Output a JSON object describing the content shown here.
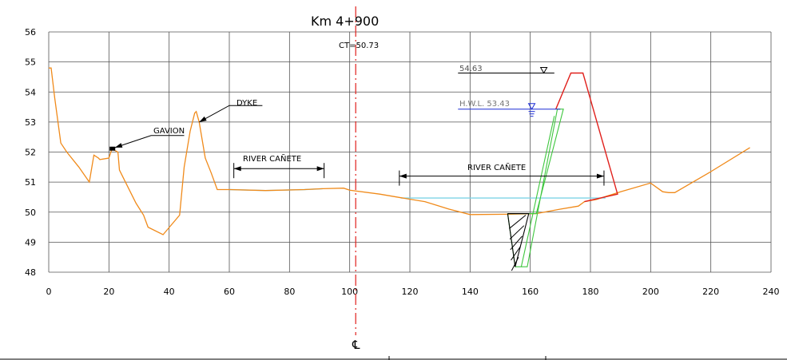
{
  "title": "Km  4+900",
  "ct_label": "CT=50.73",
  "centerline_symbol": "℄",
  "labels": {
    "gavion": "GAVION",
    "dyke": "DYKE",
    "river_left": "RIVER   CAÑETE",
    "river_right": "RIVER   CAÑETE",
    "level_top": "54.63",
    "hwl": "H.W.L.  53.43"
  },
  "colors": {
    "ground": "#f08a1a",
    "water": "#7fd3e6",
    "dyke": "#e0201c",
    "excavation": "#3ec63e",
    "hwl": "#1a2bd6",
    "centerline": "#e0201c",
    "grid": "#555555"
  },
  "chart_data": {
    "type": "line",
    "title": "Km  4+900",
    "xlim": [
      0,
      240
    ],
    "ylim": [
      48,
      56
    ],
    "x_ticks": [
      0,
      20,
      40,
      60,
      80,
      100,
      120,
      140,
      160,
      180,
      200,
      220,
      240
    ],
    "y_ticks": [
      48,
      49,
      50,
      51,
      52,
      53,
      54,
      55,
      56
    ],
    "grid": true,
    "centerline_x": 102,
    "ground_profile": [
      [
        0,
        54.8
      ],
      [
        0.8,
        54.8
      ],
      [
        2,
        53.8
      ],
      [
        4,
        52.3
      ],
      [
        6,
        52.0
      ],
      [
        10,
        51.5
      ],
      [
        13.5,
        51.0
      ],
      [
        15,
        51.9
      ],
      [
        16.5,
        51.8
      ],
      [
        17,
        51.75
      ],
      [
        20,
        51.8
      ],
      [
        21,
        52.1
      ],
      [
        22,
        52.05
      ],
      [
        23,
        52.0
      ],
      [
        23.5,
        51.4
      ],
      [
        26,
        50.9
      ],
      [
        29,
        50.3
      ],
      [
        31.5,
        49.9
      ],
      [
        33,
        49.5
      ],
      [
        38,
        49.25
      ],
      [
        43.5,
        49.9
      ],
      [
        45,
        51.5
      ],
      [
        47,
        52.7
      ],
      [
        48.5,
        53.3
      ],
      [
        49,
        53.35
      ],
      [
        50,
        53.0
      ],
      [
        52,
        51.8
      ],
      [
        54,
        51.3
      ],
      [
        56,
        50.75
      ],
      [
        60,
        50.75
      ],
      [
        72,
        50.72
      ],
      [
        85,
        50.75
      ],
      [
        91,
        50.78
      ],
      [
        98,
        50.8
      ],
      [
        100,
        50.73
      ],
      [
        110,
        50.6
      ],
      [
        117,
        50.48
      ],
      [
        125,
        50.35
      ],
      [
        133,
        50.1
      ],
      [
        140,
        49.92
      ],
      [
        153,
        49.93
      ],
      [
        162,
        49.95
      ],
      [
        170,
        50.1
      ],
      [
        176,
        50.2
      ],
      [
        178,
        50.35
      ],
      [
        182,
        50.42
      ],
      [
        190,
        50.68
      ],
      [
        200,
        50.97
      ],
      [
        204,
        50.68
      ],
      [
        206,
        50.65
      ],
      [
        208,
        50.65
      ],
      [
        220,
        51.35
      ],
      [
        233,
        52.15
      ]
    ],
    "water_left": [
      [
        60,
        50.75
      ],
      [
        72,
        50.72
      ],
      [
        85,
        50.75
      ],
      [
        91,
        50.78
      ]
    ],
    "water_right": [
      [
        117,
        50.47
      ],
      [
        185,
        50.47
      ]
    ],
    "dyke": [
      [
        178,
        50.35
      ],
      [
        189,
        50.6
      ],
      [
        177.5,
        54.63
      ],
      [
        173.5,
        54.63
      ],
      [
        168.5,
        53.43
      ]
    ],
    "excavation": [
      [
        152.5,
        49.95
      ],
      [
        162,
        49.95
      ],
      [
        171,
        53.43
      ],
      [
        169,
        53.43
      ],
      [
        159,
        48.18
      ],
      [
        155,
        48.18
      ]
    ],
    "hatched": [
      [
        152.5,
        49.95
      ],
      [
        159.5,
        49.95
      ],
      [
        155,
        48.18
      ],
      [
        152.5,
        49.95
      ]
    ],
    "level_top_line": [
      136,
      168,
      54.63
    ],
    "hwl_line": [
      136,
      170,
      53.43
    ],
    "river_left_dim": [
      61.5,
      91.5,
      51.45
    ],
    "river_right_dim": [
      116.5,
      184.5,
      51.2
    ],
    "gavion_block": [
      20.5,
      52.1
    ],
    "gavion_leader": [
      [
        22,
        52.15
      ],
      [
        34,
        52.55
      ],
      [
        45,
        52.55
      ]
    ],
    "dyke_leader": [
      [
        50,
        53.0
      ],
      [
        60,
        53.55
      ],
      [
        71,
        53.55
      ]
    ],
    "hwl_marker_x": 160.5,
    "top_marker_x": 164.5
  }
}
